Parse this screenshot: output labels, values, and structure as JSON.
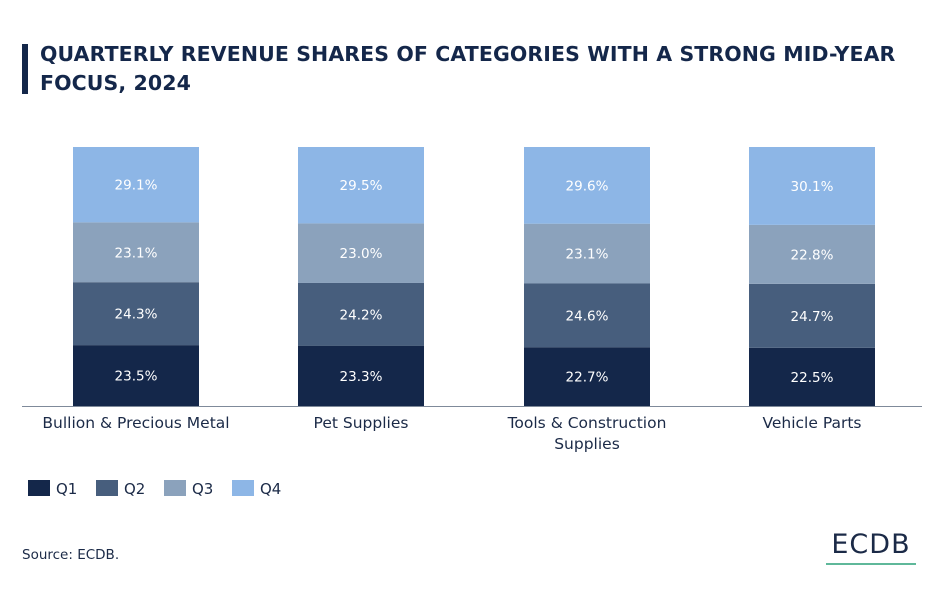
{
  "header": {
    "title": "QUARTERLY REVENUE SHARES OF CATEGORIES WITH A STRONG MID-YEAR FOCUS, 2024"
  },
  "footer": {
    "source": "Source: ECDB.",
    "logo_text": "ECDB"
  },
  "colors": {
    "Q1": "#14274a",
    "Q2": "#475e7d",
    "Q3": "#8ba2bc",
    "Q4": "#8db6e6",
    "logo_accent": "#5fb89a"
  },
  "chart_data": {
    "type": "bar",
    "stacked": true,
    "title": "QUARTERLY REVENUE SHARES OF CATEGORIES WITH A STRONG MID-YEAR FOCUS, 2024",
    "categories": [
      [
        "Bullion & Precious Metal"
      ],
      [
        "Pet Supplies"
      ],
      [
        "Tools & Construction",
        "Supplies"
      ],
      [
        "Vehicle Parts"
      ]
    ],
    "series": [
      {
        "name": "Q1",
        "values": [
          23.5,
          23.3,
          22.7,
          22.5
        ],
        "labels": [
          "23.5%",
          "23.3%",
          "22.7%",
          "22.5%"
        ]
      },
      {
        "name": "Q2",
        "values": [
          24.3,
          24.2,
          24.6,
          24.7
        ],
        "labels": [
          "24.3%",
          "24.2%",
          "24.6%",
          "24.7%"
        ]
      },
      {
        "name": "Q3",
        "values": [
          23.1,
          23.0,
          23.1,
          22.8
        ],
        "labels": [
          "23.1%",
          "23.0%",
          "23.1%",
          "22.8%"
        ]
      },
      {
        "name": "Q4",
        "values": [
          29.1,
          29.5,
          29.6,
          30.1
        ],
        "labels": [
          "29.1%",
          "29.5%",
          "29.6%",
          "30.1%"
        ]
      }
    ],
    "xlabel": "",
    "ylabel": "",
    "ylim": [
      0,
      100
    ],
    "legend": "bottom-left"
  }
}
